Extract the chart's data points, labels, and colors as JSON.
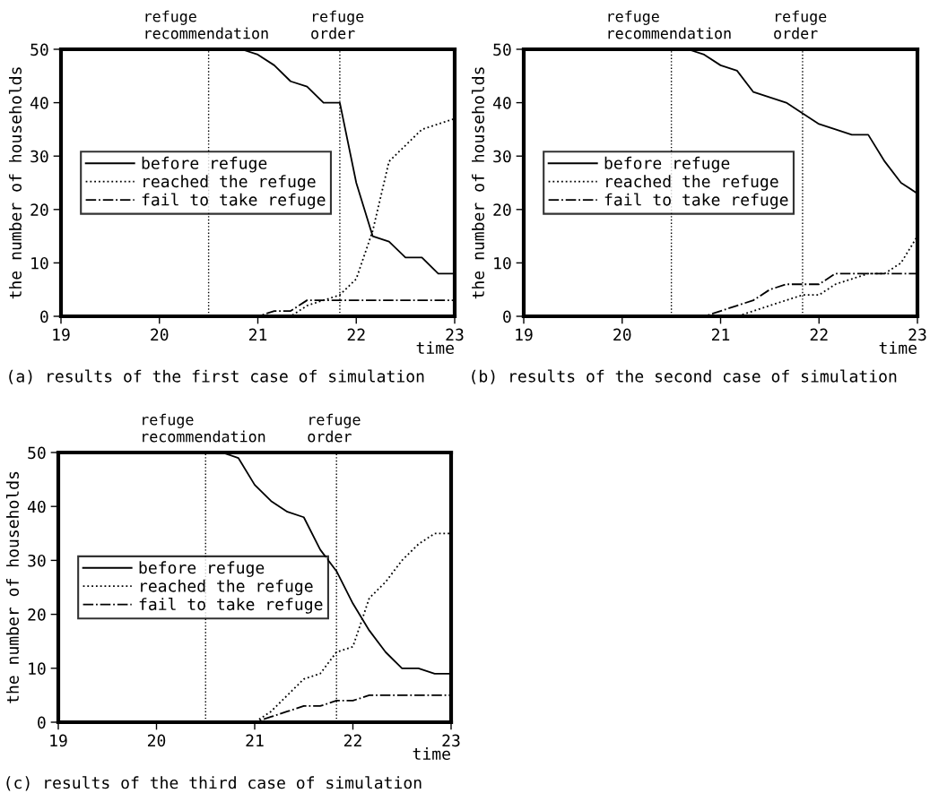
{
  "chart_data": [
    {
      "type": "line",
      "title": "(a) results of the first case of simulation",
      "xlabel": "time",
      "ylabel": "the number of households",
      "xlim": [
        19,
        23
      ],
      "xticks": [
        19,
        20,
        21,
        22,
        23
      ],
      "ylim": [
        0,
        50
      ],
      "yticks": [
        0,
        10,
        20,
        30,
        40,
        50
      ],
      "grid": false,
      "legend": "left",
      "marker": "none",
      "series": [
        {
          "name": "before refuge",
          "color": "#000000",
          "line_style": "solid",
          "x": [
            19,
            20.833,
            21.0,
            21.167,
            21.333,
            21.5,
            21.667,
            21.833,
            22.0,
            22.167,
            22.333,
            22.5,
            22.667,
            22.833,
            23
          ],
          "values": [
            50,
            50,
            49,
            47,
            44,
            43,
            40,
            40,
            25,
            15,
            14,
            11,
            11,
            8,
            8
          ]
        },
        {
          "name": "reached the refuge",
          "color": "#000000",
          "line_style": "dotted",
          "x": [
            19,
            21.333,
            21.5,
            21.667,
            21.833,
            22.0,
            22.167,
            22.333,
            22.5,
            22.667,
            22.833,
            23
          ],
          "values": [
            0,
            0,
            2,
            3,
            4,
            7,
            16,
            29,
            32,
            35,
            36,
            37
          ]
        },
        {
          "name": "fail to take refuge",
          "color": "#000000",
          "line_style": "dashdot",
          "x": [
            19,
            21.0,
            21.167,
            21.333,
            21.5,
            21.667,
            23
          ],
          "values": [
            0,
            0,
            1,
            1,
            3,
            3,
            3
          ]
        }
      ],
      "ref_lines": [
        {
          "axis": "x",
          "value": 20.5,
          "label": "refuge\nrecommendation",
          "line_style": "dotted",
          "color": "#000000"
        },
        {
          "axis": "x",
          "value": 21.833,
          "label": "refuge\norder",
          "line_style": "dotted",
          "color": "#000000"
        }
      ]
    },
    {
      "type": "line",
      "title": "(b) results of the second case of simulation",
      "xlabel": "time",
      "ylabel": "the number of households",
      "xlim": [
        19,
        23
      ],
      "xticks": [
        19,
        20,
        21,
        22,
        23
      ],
      "ylim": [
        0,
        50
      ],
      "yticks": [
        0,
        10,
        20,
        30,
        40,
        50
      ],
      "grid": false,
      "legend": "left",
      "marker": "none",
      "series": [
        {
          "name": "before refuge",
          "color": "#000000",
          "line_style": "solid",
          "x": [
            19,
            20.667,
            20.833,
            21.0,
            21.167,
            21.333,
            21.5,
            21.667,
            21.833,
            22.0,
            22.167,
            22.333,
            22.5,
            22.667,
            22.833,
            23
          ],
          "values": [
            50,
            50,
            49,
            47,
            46,
            42,
            41,
            40,
            38,
            36,
            35,
            34,
            34,
            29,
            25,
            23
          ]
        },
        {
          "name": "reached the refuge",
          "color": "#000000",
          "line_style": "dotted",
          "x": [
            19,
            21.167,
            21.333,
            21.5,
            21.667,
            21.833,
            22.0,
            22.167,
            22.333,
            22.5,
            22.667,
            22.833,
            23
          ],
          "values": [
            0,
            0,
            1,
            2,
            3,
            4,
            4,
            6,
            7,
            8,
            8,
            10,
            15
          ]
        },
        {
          "name": "fail to take refuge",
          "color": "#000000",
          "line_style": "dashdot",
          "x": [
            19,
            20.833,
            21.0,
            21.167,
            21.333,
            21.5,
            21.667,
            21.833,
            22.0,
            22.167,
            23
          ],
          "values": [
            0,
            0,
            1,
            2,
            3,
            5,
            6,
            6,
            6,
            8,
            8
          ]
        }
      ],
      "ref_lines": [
        {
          "axis": "x",
          "value": 20.5,
          "label": "refuge\nrecommendation",
          "line_style": "dotted",
          "color": "#000000"
        },
        {
          "axis": "x",
          "value": 21.833,
          "label": "refuge\norder",
          "line_style": "dotted",
          "color": "#000000"
        }
      ]
    },
    {
      "type": "line",
      "title": "(c) results of the third case of simulation",
      "xlabel": "time",
      "ylabel": "the number of households",
      "xlim": [
        19,
        23
      ],
      "xticks": [
        19,
        20,
        21,
        22,
        23
      ],
      "ylim": [
        0,
        50
      ],
      "yticks": [
        0,
        10,
        20,
        30,
        40,
        50
      ],
      "grid": false,
      "legend": "left",
      "marker": "none",
      "series": [
        {
          "name": "before refuge",
          "color": "#000000",
          "line_style": "solid",
          "x": [
            19,
            20.667,
            20.833,
            21.0,
            21.167,
            21.333,
            21.5,
            21.667,
            21.833,
            22.0,
            22.167,
            22.333,
            22.5,
            22.667,
            22.833,
            23
          ],
          "values": [
            50,
            50,
            49,
            44,
            41,
            39,
            38,
            32,
            28,
            22,
            17,
            13,
            10,
            10,
            9,
            9
          ]
        },
        {
          "name": "reached the refuge",
          "color": "#000000",
          "line_style": "dotted",
          "x": [
            19,
            21.0,
            21.167,
            21.333,
            21.5,
            21.667,
            21.833,
            22.0,
            22.167,
            22.333,
            22.5,
            22.667,
            22.833,
            23
          ],
          "values": [
            0,
            0,
            2,
            5,
            8,
            9,
            13,
            14,
            23,
            26,
            30,
            33,
            35,
            35
          ]
        },
        {
          "name": "fail to take refuge",
          "color": "#000000",
          "line_style": "dashdot",
          "x": [
            19,
            21.0,
            21.167,
            21.333,
            21.5,
            21.667,
            21.833,
            22.0,
            22.167,
            23
          ],
          "values": [
            0,
            0,
            1,
            2,
            3,
            3,
            4,
            4,
            5,
            5
          ]
        }
      ],
      "ref_lines": [
        {
          "axis": "x",
          "value": 20.5,
          "label": "refuge\nrecommendation",
          "line_style": "dotted",
          "color": "#000000"
        },
        {
          "axis": "x",
          "value": 21.833,
          "label": "refuge\norder",
          "line_style": "dotted",
          "color": "#000000"
        }
      ]
    }
  ]
}
